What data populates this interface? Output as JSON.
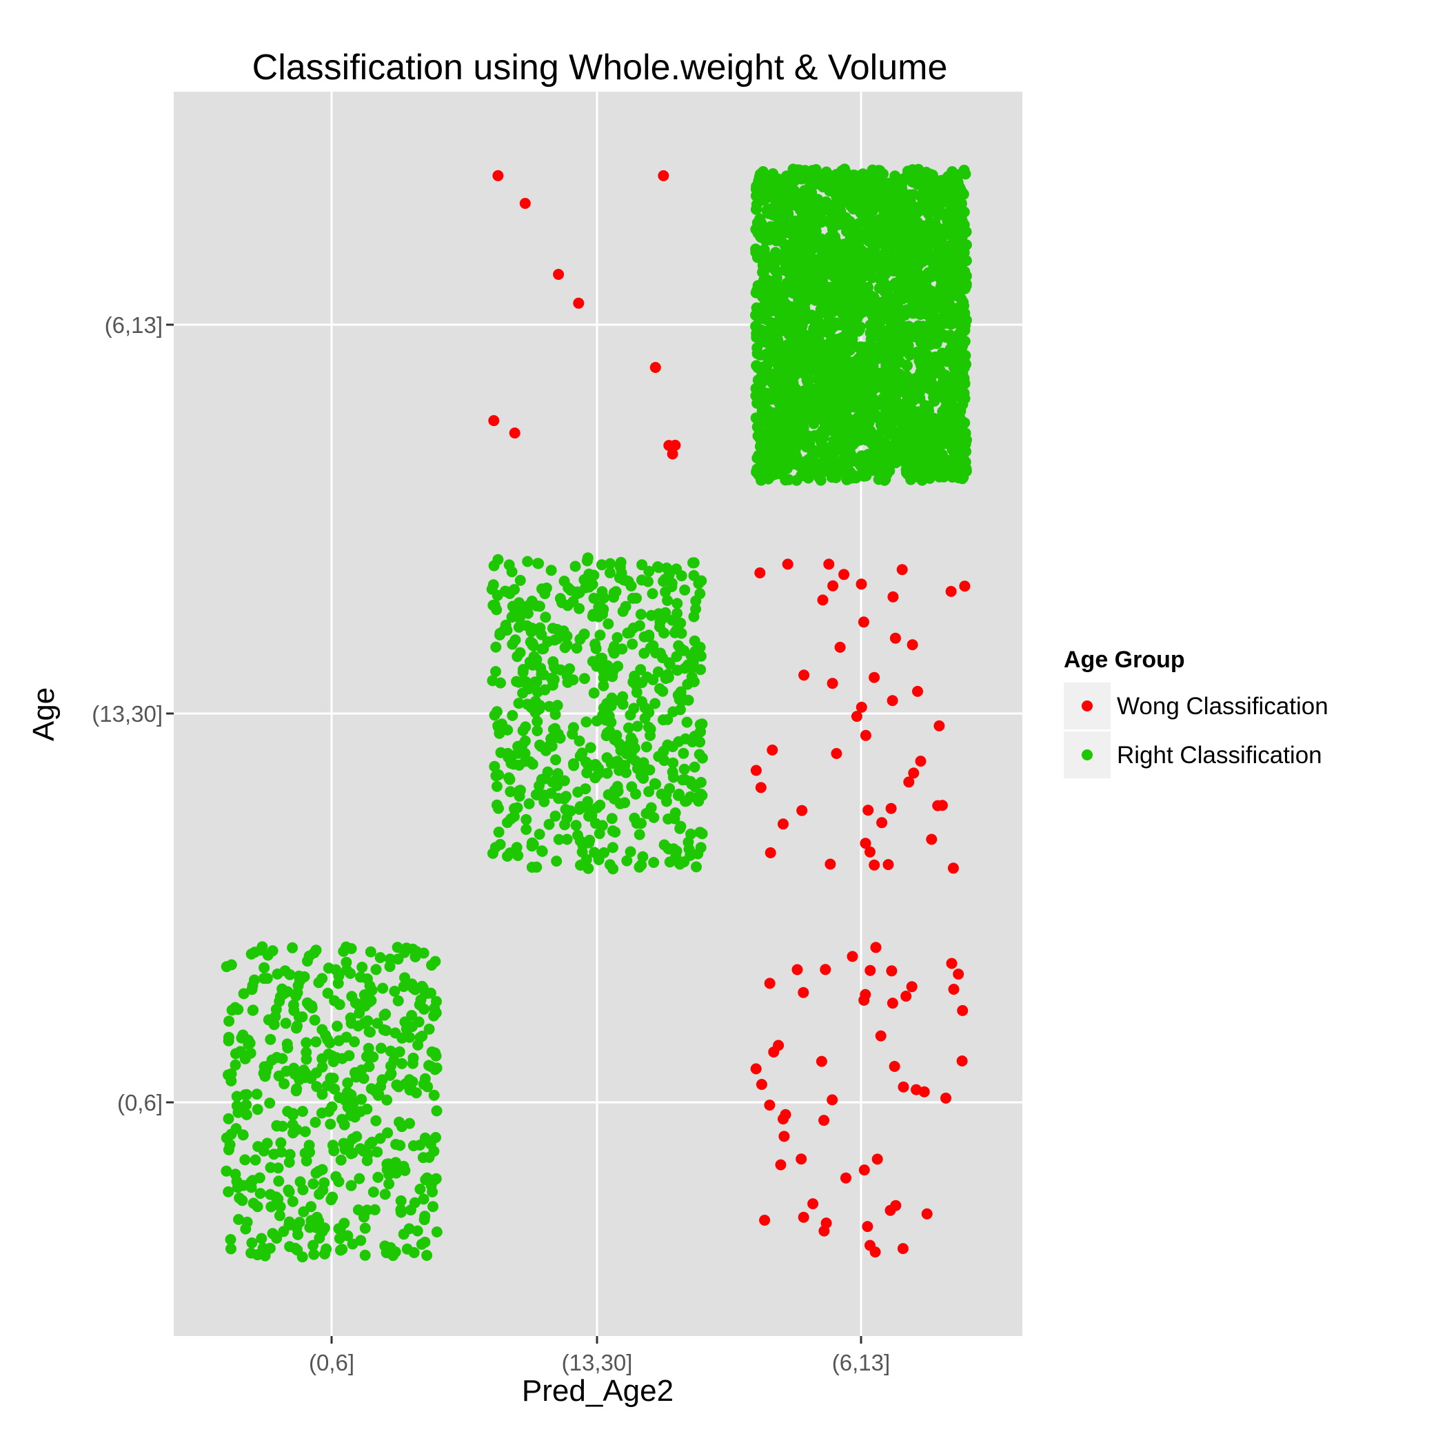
{
  "chart_data": {
    "type": "scatter",
    "title": "Classification using Whole.weight & Volume",
    "xlabel": "Pred_Age2",
    "ylabel": "Age",
    "x_categories": [
      "(0,6]",
      "(13,30]",
      "(6,13]"
    ],
    "y_categories": [
      "(0,6]",
      "(13,30]",
      "(6,13]"
    ],
    "jitter": 0.4,
    "grid": true,
    "background": "#e0e0e0",
    "legend": {
      "title": "Age Group",
      "position": "right",
      "entries": [
        {
          "label": "Wong Classification",
          "color": "#ff0000"
        },
        {
          "label": "Right Classification",
          "color": "#1dc800"
        }
      ]
    },
    "cells": [
      {
        "x": "(0,6]",
        "y": "(0,6]",
        "group": "Right Classification",
        "count": 500
      },
      {
        "x": "(13,30]",
        "y": "(13,30]",
        "group": "Right Classification",
        "count": 600
      },
      {
        "x": "(6,13]",
        "y": "(6,13]",
        "group": "Right Classification",
        "count": 2800
      },
      {
        "x": "(13,30]",
        "y": "(6,13]",
        "group": "Wong Classification",
        "count": 11
      },
      {
        "x": "(6,13]",
        "y": "(13,30]",
        "group": "Wong Classification",
        "count": 46
      },
      {
        "x": "(6,13]",
        "y": "(0,6]",
        "group": "Wong Classification",
        "count": 52
      }
    ]
  }
}
